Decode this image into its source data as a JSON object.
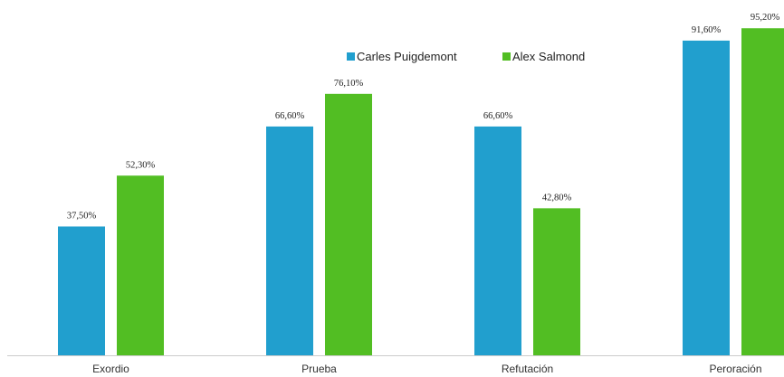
{
  "chart_data": {
    "type": "bar",
    "categories": [
      "Exordio",
      "Prueba",
      "Refutación",
      "Peroración"
    ],
    "series": [
      {
        "name": "Carles Puigdemont",
        "color": "#219fce",
        "values": [
          37.5,
          66.6,
          66.6,
          91.6
        ],
        "labels": [
          "37,50%",
          "66,60%",
          "66,60%",
          "91,60%"
        ]
      },
      {
        "name": "Alex Salmond",
        "color": "#52be23",
        "values": [
          52.3,
          76.1,
          42.8,
          95.2
        ],
        "labels": [
          "52,30%",
          "76,10%",
          "42,80%",
          "95,20%"
        ]
      }
    ],
    "ylim": [
      0,
      100
    ],
    "grid": false,
    "legend_position": "top-center",
    "axis_color": "#cccccc"
  }
}
